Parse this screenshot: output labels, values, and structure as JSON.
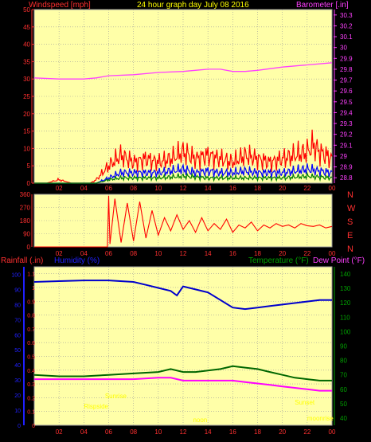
{
  "header": {
    "left_label": "Windspeed [mph]",
    "center_label": "24 hour graph day   July 08 2016",
    "right_label": "Barometer [.in]"
  },
  "colors": {
    "plot_bg": "#ffffa8",
    "grid": "#9a9a9a",
    "wind": "#ff0000",
    "wind_avg": "#0000ff",
    "wind_low": "#008000",
    "baro": "#ff40ff",
    "humidity": "#0000cc",
    "temperature": "#006600",
    "dewpoint": "#ff00ff",
    "rain_axis": "#ff3030",
    "humidity_axis": "#2020ff",
    "direction_label": "#ff3030",
    "sun_label": "#ffff00"
  },
  "chart_data": [
    {
      "type": "line",
      "title": "24 hour graph day   July 08 2016",
      "x_ticks": [
        "02",
        "04",
        "06",
        "08",
        "10",
        "12",
        "14",
        "16",
        "18",
        "20",
        "22",
        "00"
      ],
      "left_axis": {
        "label": "Windspeed [mph]",
        "ticks": [
          0,
          5,
          10,
          15,
          20,
          25,
          30,
          35,
          40,
          45,
          50
        ],
        "ylim": [
          0,
          50
        ]
      },
      "right_axis": {
        "label": "Barometer [.in]",
        "ticks": [
          "28.8",
          "28.9",
          "29",
          "29.1",
          "29.2",
          "29.3",
          "29.4",
          "29.5",
          "29.6",
          "29.7",
          "29.8",
          "29.9",
          "30",
          "30.1",
          "30.2",
          "30.3"
        ],
        "ylim": [
          28.75,
          30.35
        ]
      },
      "series": [
        {
          "name": "Barometer",
          "axis": "right",
          "x": [
            0,
            2,
            4,
            5,
            6,
            8,
            10,
            12,
            14,
            15,
            16,
            17,
            18,
            20,
            22,
            24
          ],
          "values": [
            29.72,
            29.71,
            29.71,
            29.72,
            29.74,
            29.75,
            29.77,
            29.78,
            29.8,
            29.8,
            29.78,
            29.78,
            29.79,
            29.82,
            29.84,
            29.86
          ]
        },
        {
          "name": "Wind gust",
          "axis": "left",
          "x": [
            0,
            1,
            2,
            3,
            4,
            4.5,
            5,
            5.5,
            6,
            7,
            8,
            9,
            10,
            11,
            12,
            13,
            14,
            15,
            16,
            17,
            18,
            19,
            20,
            21,
            22,
            22.5,
            23,
            24
          ],
          "values": [
            0,
            0,
            1,
            0,
            0,
            0,
            1,
            3,
            5,
            8,
            6,
            7,
            6,
            7,
            9,
            7,
            8,
            7,
            6,
            8,
            7,
            6,
            7,
            8,
            9,
            11,
            9,
            7
          ]
        },
        {
          "name": "Wind average",
          "axis": "left",
          "x": [
            0,
            4,
            5,
            6,
            7,
            8,
            9,
            10,
            11,
            12,
            13,
            14,
            15,
            16,
            17,
            18,
            19,
            20,
            21,
            22,
            23,
            24
          ],
          "values": [
            0,
            0,
            0,
            1.5,
            3,
            3,
            3,
            3,
            3.5,
            4,
            3,
            3.5,
            3,
            3,
            3.5,
            3,
            3,
            3,
            3.5,
            4,
            3.5,
            3
          ]
        },
        {
          "name": "Wind low",
          "axis": "left",
          "x": [
            0,
            5,
            6,
            7,
            8,
            10,
            12,
            14,
            16,
            18,
            20,
            22,
            24
          ],
          "values": [
            0,
            0,
            1,
            1.5,
            1.5,
            1.5,
            2,
            1.5,
            1.5,
            1.5,
            1.5,
            2,
            1.5
          ]
        }
      ]
    },
    {
      "type": "line",
      "title": "",
      "x_ticks": [
        "02",
        "04",
        "06",
        "08",
        "10",
        "12",
        "14",
        "16",
        "18",
        "20",
        "22",
        "00"
      ],
      "left_axis": {
        "ticks": [
          0,
          90,
          180,
          270,
          360
        ],
        "ylim": [
          0,
          360
        ]
      },
      "right_labels": [
        "N",
        "W",
        "S",
        "E",
        "N"
      ],
      "series": [
        {
          "name": "Wind direction",
          "x": [
            0,
            4,
            5.9,
            6.0,
            6.1,
            6.5,
            7,
            7.5,
            8,
            8.5,
            9,
            9.5,
            10,
            10.5,
            11,
            11.5,
            12,
            12.5,
            13,
            13.5,
            14,
            14.5,
            15,
            15.5,
            16,
            16.5,
            17,
            17.5,
            18,
            18.5,
            19,
            19.5,
            20,
            20.5,
            21,
            21.5,
            22,
            22.5,
            23,
            23.5,
            24
          ],
          "values": [
            0,
            0,
            0,
            350,
            20,
            330,
            30,
            300,
            40,
            310,
            60,
            250,
            80,
            200,
            110,
            220,
            120,
            180,
            100,
            200,
            110,
            160,
            120,
            190,
            100,
            150,
            130,
            170,
            110,
            150,
            130,
            160,
            140,
            150,
            130,
            160,
            145,
            140,
            150,
            130,
            140
          ]
        }
      ]
    },
    {
      "type": "line",
      "title": "",
      "x_ticks": [
        "02",
        "04",
        "06",
        "08",
        "10",
        "12",
        "14",
        "16",
        "18",
        "20",
        "22",
        "00"
      ],
      "left_axis": {
        "label": "Rainfall (.in)",
        "ticks": [
          "0",
          "0.1",
          "0.2",
          "0.3",
          "0.4",
          "0.5",
          "0.6",
          "0.7",
          "0.8",
          "0.9",
          "1",
          "1.1"
        ],
        "ylim": [
          0,
          1.15
        ]
      },
      "humidity_axis": {
        "label": "Humidity (%)",
        "ticks": [
          0,
          10,
          20,
          30,
          40,
          50,
          60,
          70,
          80,
          90,
          100
        ],
        "ylim": [
          0,
          105
        ]
      },
      "right_axis": {
        "label": "Temperature (°F)",
        "label2": "Dew Point (°F)",
        "ticks": [
          40,
          50,
          60,
          70,
          80,
          90,
          100,
          110,
          120,
          130,
          140
        ],
        "ylim": [
          35,
          145
        ]
      },
      "series": [
        {
          "name": "Humidity",
          "axis": "humidity",
          "x": [
            0,
            2,
            4,
            6,
            8,
            9,
            10,
            11,
            11.5,
            12,
            13,
            14,
            15,
            16,
            17,
            18,
            19,
            20,
            21,
            22,
            23,
            24
          ],
          "values": [
            95,
            95.5,
            96,
            96,
            95,
            93,
            91,
            89,
            86,
            92,
            90,
            88,
            83,
            78,
            77,
            78,
            79,
            80,
            81,
            82,
            83,
            83
          ]
        },
        {
          "name": "Temperature",
          "axis": "right",
          "x": [
            0,
            2,
            4,
            6,
            8,
            10,
            11,
            12,
            13,
            14,
            15,
            16,
            17,
            18,
            19,
            20,
            21,
            22,
            23,
            24
          ],
          "values": [
            70,
            69,
            69,
            70,
            71,
            72,
            74,
            72,
            72,
            73,
            74,
            76,
            75,
            74,
            72,
            70,
            68,
            67,
            66,
            66
          ]
        },
        {
          "name": "Dew Point",
          "axis": "right",
          "x": [
            0,
            2,
            4,
            6,
            8,
            10,
            11,
            12,
            13,
            14,
            15,
            16,
            17,
            18,
            19,
            20,
            21,
            22,
            23,
            24
          ],
          "values": [
            67,
            67,
            67,
            67,
            67,
            68,
            68,
            66,
            66,
            66,
            66,
            66,
            65,
            64,
            63,
            62,
            61,
            60,
            59,
            59
          ]
        }
      ],
      "annotations": [
        "Sunrise",
        "Rispside",
        "noon",
        "Sunset",
        "moonrise"
      ]
    }
  ]
}
